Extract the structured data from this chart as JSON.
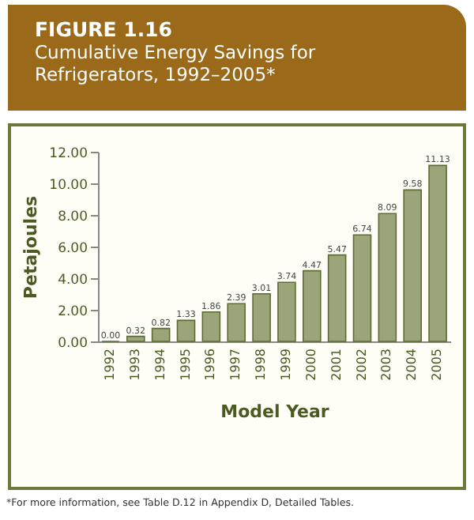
{
  "chart_data": {
    "type": "bar",
    "title": "FIGURE 1.16",
    "subtitle": "Cumulative Energy Savings for Refrigerators, 1992–2005*",
    "xlabel": "Model Year",
    "ylabel": "Petajoules",
    "categories": [
      "1992",
      "1993",
      "1994",
      "1995",
      "1996",
      "1997",
      "1998",
      "1999",
      "2000",
      "2001",
      "2002",
      "2003",
      "2004",
      "2005"
    ],
    "values": [
      0.0,
      0.32,
      0.82,
      1.33,
      1.86,
      2.39,
      3.01,
      3.74,
      4.47,
      5.47,
      6.74,
      8.09,
      9.58,
      11.13
    ],
    "value_labels": [
      "0.00",
      "0.32",
      "0.82",
      "1.33",
      "1.86",
      "2.39",
      "3.01",
      "3.74",
      "4.47",
      "5.47",
      "6.74",
      "8.09",
      "9.58",
      "11.13"
    ],
    "color": "#9aa67a",
    "ylim": [
      0,
      12
    ],
    "yticks": [
      {
        "value": 0,
        "label": "0.00"
      },
      {
        "value": 2,
        "label": "2.00"
      },
      {
        "value": 4,
        "label": "4.00"
      },
      {
        "value": 6,
        "label": "6.00"
      },
      {
        "value": 8,
        "label": "8.00"
      },
      {
        "value": 10,
        "label": "10.00"
      },
      {
        "value": 12,
        "label": "12.00"
      }
    ],
    "grid": false,
    "annotations": [
      "*For more information, see Table D.12 in Appendix D,  Detailed Tables."
    ]
  }
}
